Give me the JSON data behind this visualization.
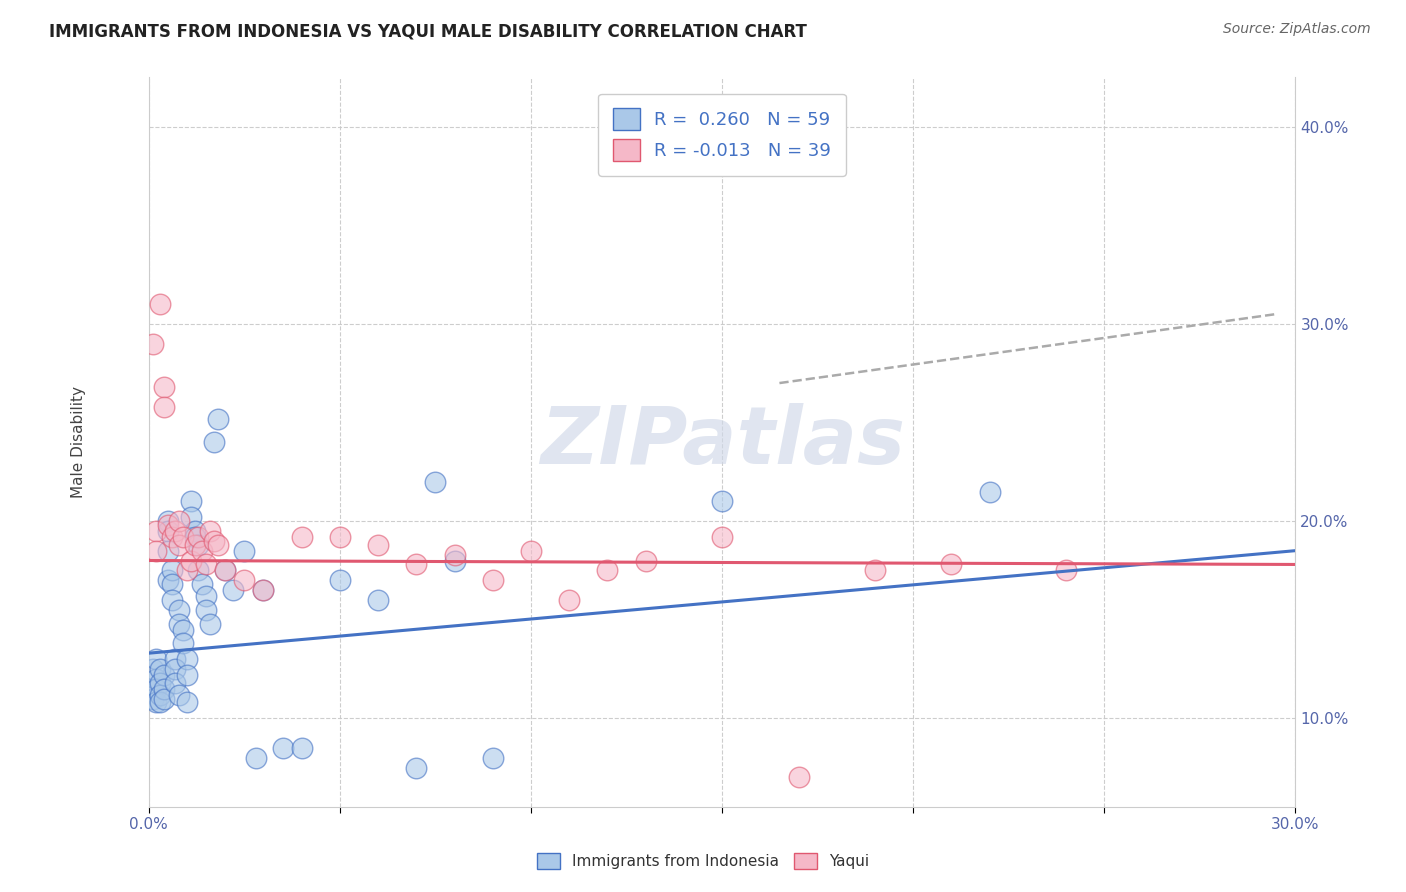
{
  "title": "IMMIGRANTS FROM INDONESIA VS YAQUI MALE DISABILITY CORRELATION CHART",
  "source": "Source: ZipAtlas.com",
  "ylabel": "Male Disability",
  "xlim": [
    0.0,
    0.3
  ],
  "ylim": [
    0.055,
    0.425
  ],
  "xticks": [
    0.0,
    0.05,
    0.1,
    0.15,
    0.2,
    0.25,
    0.3
  ],
  "xtick_labels": [
    "0.0%",
    "",
    "",
    "",
    "",
    "",
    "30.0%"
  ],
  "yticks": [
    0.1,
    0.2,
    0.3,
    0.4
  ],
  "ytick_labels": [
    "10.0%",
    "20.0%",
    "30.0%",
    "40.0%"
  ],
  "legend1_label": "R =  0.260   N = 59",
  "legend2_label": "R = -0.013   N = 39",
  "color_blue": "#aac8e8",
  "color_pink": "#f5b8c8",
  "line_blue": "#4472c4",
  "line_pink": "#e05870",
  "watermark": "ZIPatlas",
  "blue_scatter_x": [
    0.001,
    0.001,
    0.001,
    0.002,
    0.002,
    0.002,
    0.002,
    0.003,
    0.003,
    0.003,
    0.003,
    0.004,
    0.004,
    0.004,
    0.005,
    0.005,
    0.005,
    0.005,
    0.006,
    0.006,
    0.006,
    0.007,
    0.007,
    0.007,
    0.008,
    0.008,
    0.008,
    0.009,
    0.009,
    0.01,
    0.01,
    0.01,
    0.011,
    0.011,
    0.012,
    0.012,
    0.013,
    0.013,
    0.014,
    0.015,
    0.015,
    0.016,
    0.017,
    0.018,
    0.02,
    0.022,
    0.025,
    0.028,
    0.03,
    0.035,
    0.04,
    0.05,
    0.06,
    0.07,
    0.075,
    0.08,
    0.09,
    0.15,
    0.22
  ],
  "blue_scatter_y": [
    0.125,
    0.115,
    0.11,
    0.13,
    0.12,
    0.115,
    0.108,
    0.125,
    0.118,
    0.112,
    0.108,
    0.122,
    0.115,
    0.11,
    0.2,
    0.195,
    0.185,
    0.17,
    0.175,
    0.168,
    0.16,
    0.13,
    0.125,
    0.118,
    0.155,
    0.148,
    0.112,
    0.145,
    0.138,
    0.13,
    0.122,
    0.108,
    0.21,
    0.202,
    0.195,
    0.192,
    0.188,
    0.175,
    0.168,
    0.162,
    0.155,
    0.148,
    0.24,
    0.252,
    0.175,
    0.165,
    0.185,
    0.08,
    0.165,
    0.085,
    0.085,
    0.17,
    0.16,
    0.075,
    0.22,
    0.18,
    0.08,
    0.21,
    0.215
  ],
  "pink_scatter_x": [
    0.001,
    0.002,
    0.002,
    0.003,
    0.004,
    0.004,
    0.005,
    0.006,
    0.007,
    0.008,
    0.008,
    0.009,
    0.01,
    0.011,
    0.012,
    0.013,
    0.014,
    0.015,
    0.016,
    0.017,
    0.018,
    0.02,
    0.025,
    0.03,
    0.04,
    0.05,
    0.06,
    0.07,
    0.08,
    0.09,
    0.1,
    0.11,
    0.12,
    0.13,
    0.15,
    0.17,
    0.19,
    0.21,
    0.24
  ],
  "pink_scatter_y": [
    0.29,
    0.195,
    0.185,
    0.31,
    0.268,
    0.258,
    0.198,
    0.192,
    0.195,
    0.2,
    0.188,
    0.192,
    0.175,
    0.18,
    0.188,
    0.192,
    0.185,
    0.178,
    0.195,
    0.19,
    0.188,
    0.175,
    0.17,
    0.165,
    0.192,
    0.192,
    0.188,
    0.178,
    0.183,
    0.17,
    0.185,
    0.16,
    0.175,
    0.18,
    0.192,
    0.07,
    0.175,
    0.178,
    0.175
  ],
  "blue_line_x": [
    0.0,
    0.3
  ],
  "blue_line_y": [
    0.133,
    0.185
  ],
  "pink_line_x": [
    0.0,
    0.3
  ],
  "pink_line_y": [
    0.18,
    0.178
  ],
  "dash_line_x": [
    0.165,
    0.295
  ],
  "dash_line_y": [
    0.27,
    0.305
  ],
  "bg_color": "#ffffff",
  "grid_color": "#c8c8c8"
}
